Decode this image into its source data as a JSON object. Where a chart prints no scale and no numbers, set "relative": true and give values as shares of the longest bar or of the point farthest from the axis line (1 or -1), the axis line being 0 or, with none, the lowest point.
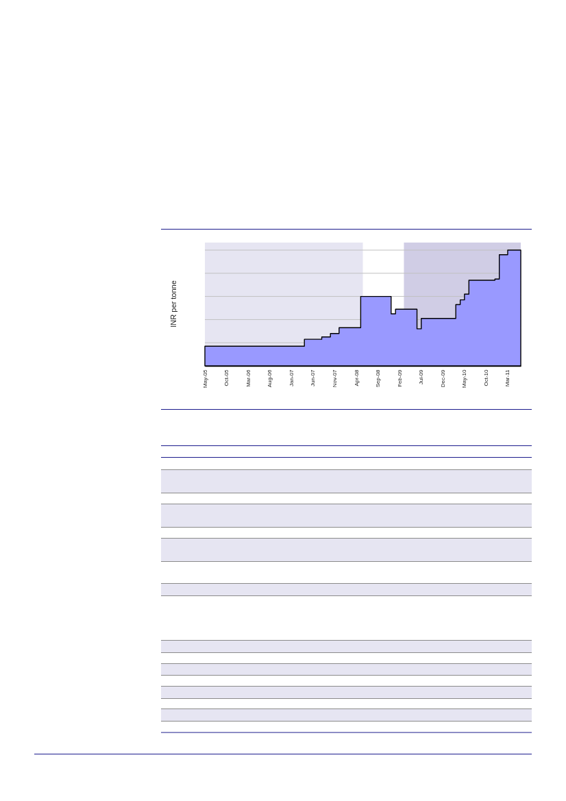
{
  "chart_data": {
    "type": "area",
    "ylabel": "INR per tonne",
    "relative": true,
    "color": "#9999ff",
    "x": [
      "2005-05",
      "2007-04",
      "2007-04",
      "2007-08",
      "2007-08",
      "2007-10",
      "2007-10",
      "2007-12",
      "2007-12",
      "2008-05",
      "2008-05",
      "2008-12",
      "2008-12",
      "2009-01",
      "2009-01",
      "2009-06",
      "2009-06",
      "2009-07",
      "2009-07",
      "2010-03",
      "2010-03",
      "2010-04",
      "2010-04",
      "2010-05",
      "2010-05",
      "2010-06",
      "2010-06",
      "2010-12",
      "2010-12",
      "2011-01",
      "2011-01",
      "2011-03",
      "2011-03",
      "2011-06"
    ],
    "values": [
      0.17,
      0.17,
      0.23,
      0.23,
      0.25,
      0.25,
      0.28,
      0.28,
      0.33,
      0.33,
      0.6,
      0.6,
      0.45,
      0.45,
      0.49,
      0.49,
      0.32,
      0.32,
      0.41,
      0.41,
      0.53,
      0.53,
      0.57,
      0.57,
      0.62,
      0.62,
      0.74,
      0.74,
      0.75,
      0.75,
      0.96,
      0.96,
      1,
      1
    ],
    "xlim": [
      "2005-05",
      "2011-06"
    ],
    "xticks": [
      {
        "value": "2005-05",
        "label": "May-05"
      },
      {
        "value": "2005-10",
        "label": "Oct-05"
      },
      {
        "value": "2006-03",
        "label": "Mar-06"
      },
      {
        "value": "2006-08",
        "label": "Aug-06"
      },
      {
        "value": "2007-01",
        "label": "Jan-07"
      },
      {
        "value": "2007-06",
        "label": "Jun-07"
      },
      {
        "value": "2007-11",
        "label": "Nov-07"
      },
      {
        "value": "2008-04",
        "label": "Apr-08"
      },
      {
        "value": "2008-09",
        "label": "Sep-08"
      },
      {
        "value": "2009-02",
        "label": "Feb-09"
      },
      {
        "value": "2009-07",
        "label": "Jul-09"
      },
      {
        "value": "2009-12",
        "label": "Dec-09"
      },
      {
        "value": "2010-05",
        "label": "May-10"
      },
      {
        "value": "2010-10",
        "label": "Oct-10"
      },
      {
        "value": "2011-03",
        "label": "Mar-11"
      }
    ],
    "tick_labels": "x",
    "grid": "y",
    "bands": [
      {
        "axis": "x",
        "from": "2005-05",
        "to": "2008-05-16",
        "color": "#e6e5f2"
      },
      {
        "axis": "x",
        "from": "2009-03",
        "to": "2011-06",
        "color": "#d0cde5"
      }
    ]
  }
}
